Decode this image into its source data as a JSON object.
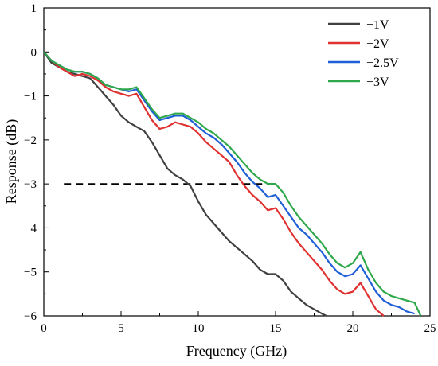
{
  "chart_data": {
    "type": "line",
    "xlabel": "Frequency (GHz)",
    "ylabel": "Response (dB)",
    "xlim": [
      0,
      25
    ],
    "ylim": [
      -6,
      1
    ],
    "xticks": [
      "0",
      "5",
      "10",
      "15",
      "20",
      "25"
    ],
    "yticks": [
      "1",
      "0",
      "−1",
      "−2",
      "−3",
      "−4",
      "−5",
      "−6"
    ],
    "legend_position": "top-right",
    "grid": false,
    "reference_line": {
      "y": -3,
      "x_start": 1.3,
      "x_end": 15.2,
      "style": "dashed",
      "color": "#000000"
    },
    "series": [
      {
        "name": "−1V",
        "color": "#404040",
        "x": [
          0,
          0.5,
          1,
          1.5,
          2,
          2.5,
          3,
          3.5,
          4,
          4.5,
          5,
          5.5,
          6,
          6.5,
          7,
          7.5,
          8,
          8.5,
          9,
          9.5,
          10,
          10.5,
          11,
          11.5,
          12,
          12.5,
          13,
          13.5,
          14,
          14.5,
          15,
          15.5,
          16,
          16.5,
          17,
          17.5,
          18,
          18.3
        ],
        "y": [
          0,
          -0.25,
          -0.35,
          -0.45,
          -0.5,
          -0.55,
          -0.6,
          -0.8,
          -1.0,
          -1.2,
          -1.45,
          -1.6,
          -1.7,
          -1.8,
          -2.05,
          -2.35,
          -2.65,
          -2.8,
          -2.9,
          -3.05,
          -3.4,
          -3.7,
          -3.9,
          -4.1,
          -4.3,
          -4.45,
          -4.6,
          -4.75,
          -4.95,
          -5.05,
          -5.05,
          -5.2,
          -5.45,
          -5.6,
          -5.75,
          -5.85,
          -5.95,
          -6.0
        ]
      },
      {
        "name": "−2V",
        "color": "#e03030",
        "x": [
          0,
          0.5,
          1,
          1.5,
          2,
          2.5,
          3,
          3.5,
          4,
          4.5,
          5,
          5.5,
          6,
          6.5,
          7,
          7.5,
          8,
          8.5,
          9,
          9.5,
          10,
          10.5,
          11,
          11.5,
          12,
          12.5,
          13,
          13.5,
          14,
          14.5,
          15,
          15.5,
          16,
          16.5,
          17,
          17.5,
          18,
          18.5,
          19,
          19.5,
          20,
          20.5,
          21,
          21.5,
          22
        ],
        "y": [
          0,
          -0.2,
          -0.35,
          -0.45,
          -0.55,
          -0.5,
          -0.55,
          -0.65,
          -0.8,
          -0.9,
          -0.95,
          -1.0,
          -0.95,
          -1.25,
          -1.55,
          -1.75,
          -1.7,
          -1.6,
          -1.65,
          -1.7,
          -1.85,
          -2.05,
          -2.2,
          -2.35,
          -2.5,
          -2.8,
          -3.05,
          -3.25,
          -3.4,
          -3.6,
          -3.55,
          -3.8,
          -4.1,
          -4.35,
          -4.55,
          -4.75,
          -4.95,
          -5.2,
          -5.4,
          -5.5,
          -5.45,
          -5.25,
          -5.55,
          -5.85,
          -6.0
        ]
      },
      {
        "name": "−2.5V",
        "color": "#1e5fd8",
        "x": [
          0,
          0.5,
          1,
          1.5,
          2,
          2.5,
          3,
          3.5,
          4,
          4.5,
          5,
          5.5,
          6,
          6.5,
          7,
          7.5,
          8,
          8.5,
          9,
          9.5,
          10,
          10.5,
          11,
          11.5,
          12,
          12.5,
          13,
          13.5,
          14,
          14.5,
          15,
          15.5,
          16,
          16.5,
          17,
          17.5,
          18,
          18.5,
          19,
          19.5,
          20,
          20.5,
          21,
          21.5,
          22,
          22.5,
          23,
          23.5,
          24
        ],
        "y": [
          0,
          -0.2,
          -0.3,
          -0.4,
          -0.45,
          -0.45,
          -0.5,
          -0.6,
          -0.75,
          -0.8,
          -0.85,
          -0.9,
          -0.85,
          -1.1,
          -1.35,
          -1.55,
          -1.5,
          -1.45,
          -1.45,
          -1.55,
          -1.7,
          -1.85,
          -1.95,
          -2.1,
          -2.3,
          -2.5,
          -2.75,
          -2.95,
          -3.1,
          -3.3,
          -3.25,
          -3.5,
          -3.75,
          -4.0,
          -4.15,
          -4.35,
          -4.55,
          -4.8,
          -5.0,
          -5.1,
          -5.05,
          -4.85,
          -5.15,
          -5.45,
          -5.65,
          -5.75,
          -5.8,
          -5.9,
          -5.95
        ]
      },
      {
        "name": "−3V",
        "color": "#2ea84a",
        "x": [
          0,
          0.5,
          1,
          1.5,
          2,
          2.5,
          3,
          3.5,
          4,
          4.5,
          5,
          5.5,
          6,
          6.5,
          7,
          7.5,
          8,
          8.5,
          9,
          9.5,
          10,
          10.5,
          11,
          11.5,
          12,
          12.5,
          13,
          13.5,
          14,
          14.5,
          15,
          15.5,
          16,
          16.5,
          17,
          17.5,
          18,
          18.5,
          19,
          19.5,
          20,
          20.5,
          21,
          21.5,
          22,
          22.5,
          23,
          23.5,
          24,
          24.4
        ],
        "y": [
          0,
          -0.2,
          -0.3,
          -0.4,
          -0.45,
          -0.45,
          -0.5,
          -0.6,
          -0.75,
          -0.8,
          -0.85,
          -0.85,
          -0.8,
          -1.05,
          -1.3,
          -1.5,
          -1.45,
          -1.4,
          -1.4,
          -1.5,
          -1.6,
          -1.75,
          -1.85,
          -2.0,
          -2.15,
          -2.35,
          -2.55,
          -2.75,
          -2.9,
          -3.0,
          -3.0,
          -3.2,
          -3.5,
          -3.75,
          -3.95,
          -4.15,
          -4.35,
          -4.6,
          -4.8,
          -4.9,
          -4.8,
          -4.55,
          -4.95,
          -5.25,
          -5.45,
          -5.55,
          -5.6,
          -5.65,
          -5.7,
          -6.0
        ]
      }
    ]
  }
}
